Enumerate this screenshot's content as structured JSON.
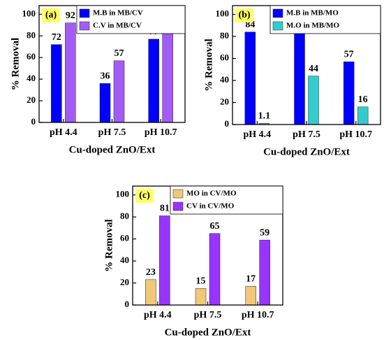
{
  "chart_data": [
    {
      "type": "bar",
      "panel_label": "(a)",
      "categories": [
        "pH 4.4",
        "pH 7.5",
        "pH 10.7"
      ],
      "series": [
        {
          "name": "M.B in MB/CV",
          "color": "#0000ff",
          "values": [
            72,
            36,
            77
          ]
        },
        {
          "name": "C.V in MB/CV",
          "color": "#a25cf5",
          "values": [
            92,
            57,
            87
          ]
        }
      ],
      "ylabel": "% Removal",
      "xlabel": "Cu-doped ZnO/Ext",
      "ylim": [
        0,
        108
      ],
      "yticks": [
        0,
        20,
        40,
        60,
        80,
        100
      ]
    },
    {
      "type": "bar",
      "panel_label": "(b)",
      "categories": [
        "pH 4.4",
        "pH 7.5",
        "pH 10.7"
      ],
      "series": [
        {
          "name": "M.B in MB/MO",
          "color": "#0000ff",
          "values": [
            84,
            92,
            57
          ]
        },
        {
          "name": "M.O in MB/MO",
          "color": "#33cccc",
          "values": [
            1.1,
            44,
            16
          ]
        }
      ],
      "ylabel": "% Removal",
      "xlabel": "Cu-doped ZnO/Ext",
      "ylim": [
        0,
        108
      ],
      "yticks": [
        0,
        20,
        40,
        60,
        80,
        100
      ]
    },
    {
      "type": "bar",
      "panel_label": "(c)",
      "categories": [
        "pH 4.4",
        "pH 7.5",
        "pH 10.7"
      ],
      "series": [
        {
          "name": "MO in CV/MO",
          "color": "#f0c878",
          "values": [
            23,
            15,
            17
          ]
        },
        {
          "name": "CV in CV/MO",
          "color": "#9933ff",
          "values": [
            81,
            65,
            59
          ]
        }
      ],
      "ylabel": "% Removal",
      "xlabel": "Cu-doped ZnO/Ext",
      "ylim": [
        0,
        108
      ],
      "yticks": [
        0,
        20,
        40,
        60,
        80,
        100
      ]
    }
  ]
}
